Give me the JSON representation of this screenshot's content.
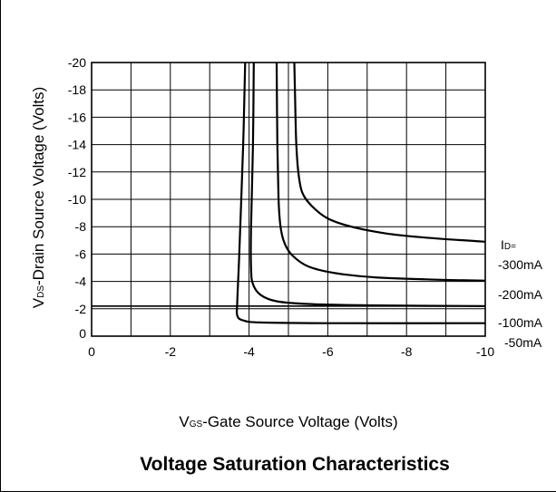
{
  "chart_data": {
    "type": "line",
    "title": "Voltage Saturation Characteristics",
    "xlabel": {
      "main": "V",
      "sub": "GS",
      "rest": "-Gate Source Voltage  (Volts)"
    },
    "ylabel": {
      "main": "V",
      "sub": "DS",
      "rest": "-Drain Source  Voltage (Volts)"
    },
    "xlim": [
      0,
      -10
    ],
    "ylim": [
      0,
      -20
    ],
    "x_ticks": [
      "0",
      "-2",
      "-4",
      "-6",
      "-8",
      "-10"
    ],
    "y_ticks": [
      "0",
      "-2",
      "-4",
      "-6",
      "-8",
      "-10",
      "-12",
      "-14",
      "-16",
      "-18",
      "-20"
    ],
    "grid": true,
    "legend_header": {
      "main": "I",
      "sub": "D="
    },
    "series": [
      {
        "name": "-300mA",
        "points": [
          [
            -5.15,
            -20
          ],
          [
            -5.18,
            -16
          ],
          [
            -5.2,
            -14
          ],
          [
            -5.25,
            -12
          ],
          [
            -5.35,
            -10.5
          ],
          [
            -5.6,
            -9.5
          ],
          [
            -6,
            -8.6
          ],
          [
            -6.6,
            -8.0
          ],
          [
            -7.5,
            -7.5
          ],
          [
            -8.5,
            -7.2
          ],
          [
            -10,
            -6.9
          ]
        ]
      },
      {
        "name": "-200mA",
        "points": [
          [
            -4.7,
            -20
          ],
          [
            -4.72,
            -14
          ],
          [
            -4.75,
            -10
          ],
          [
            -4.8,
            -8
          ],
          [
            -4.9,
            -6.8
          ],
          [
            -5.1,
            -5.9
          ],
          [
            -5.5,
            -5.1
          ],
          [
            -6.2,
            -4.6
          ],
          [
            -7.2,
            -4.3
          ],
          [
            -8.5,
            -4.15
          ],
          [
            -10,
            -4.05
          ]
        ]
      },
      {
        "name": "-100mA",
        "points": [
          [
            -4.12,
            -20
          ],
          [
            -4.1,
            -14
          ],
          [
            -4.05,
            -8
          ],
          [
            -4.05,
            -5
          ],
          [
            -4.1,
            -3.8
          ],
          [
            -4.3,
            -3.0
          ],
          [
            -4.7,
            -2.55
          ],
          [
            -5.5,
            -2.35
          ],
          [
            -7,
            -2.25
          ],
          [
            -10,
            -2.2
          ]
        ]
      },
      {
        "name": "-50mA",
        "points": [
          [
            -3.9,
            -20
          ],
          [
            -3.85,
            -14
          ],
          [
            -3.75,
            -6
          ],
          [
            -3.7,
            -2.5
          ],
          [
            -3.7,
            -1.5
          ],
          [
            -3.85,
            -1.15
          ],
          [
            -4.3,
            -1.0
          ],
          [
            -6,
            -0.95
          ],
          [
            -10,
            -0.95
          ]
        ]
      }
    ],
    "extra_lines": [
      {
        "points": [
          [
            0,
            -2.2
          ],
          [
            -10,
            -2.2
          ]
        ]
      }
    ]
  }
}
